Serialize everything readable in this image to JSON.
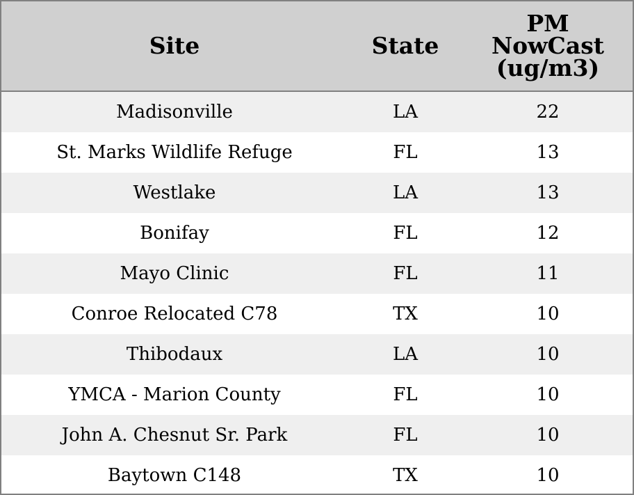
{
  "table": {
    "columns": [
      "Site",
      "State",
      "PM NowCast (ug/m3)"
    ],
    "rows": [
      [
        "Madisonville",
        "LA",
        22
      ],
      [
        "St. Marks Wildlife Refuge",
        "FL",
        13
      ],
      [
        "Westlake",
        "LA",
        13
      ],
      [
        "Bonifay",
        "FL",
        12
      ],
      [
        "Mayo Clinic",
        "FL",
        11
      ],
      [
        "Conroe Relocated C78",
        "TX",
        10
      ],
      [
        "Thibodaux",
        "LA",
        10
      ],
      [
        "YMCA - Marion County",
        "FL",
        10
      ],
      [
        "John A. Chesnut Sr. Park",
        "FL",
        10
      ],
      [
        "Baytown C148",
        "TX",
        10
      ]
    ]
  }
}
